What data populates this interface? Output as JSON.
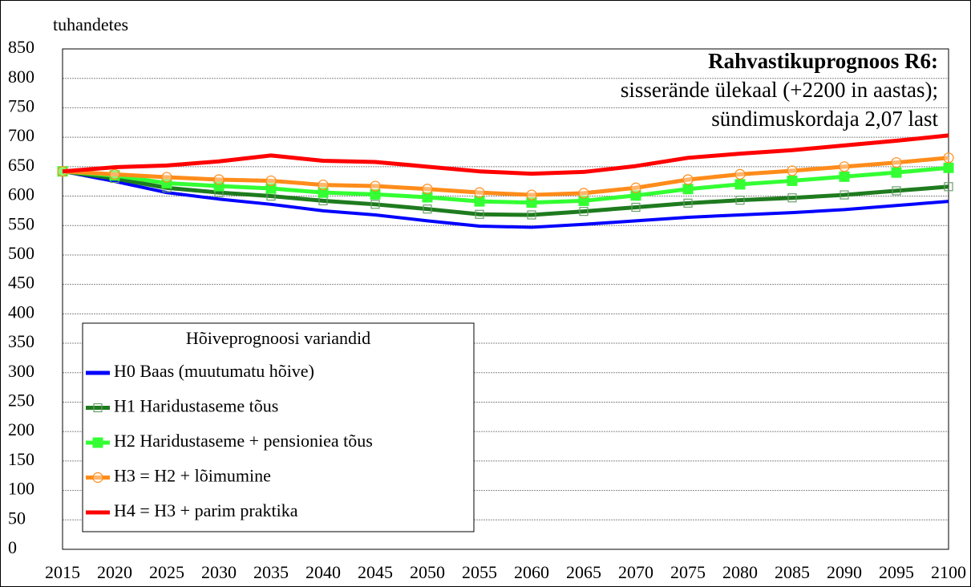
{
  "chart_data": {
    "type": "line",
    "ylabel": "tuhandetes",
    "annotations": [
      "Rahvastikuprognoos R6:",
      "sisserände ülekaal (+2200 in aastas);",
      "sündimuskordaja 2,07 last"
    ],
    "legend_title": "Hõiveprognoosi variandid",
    "legend_position": "lower left",
    "grid": true,
    "categories": [
      "2015",
      "2020",
      "2025",
      "2030",
      "2035",
      "2040",
      "2045",
      "2050",
      "2055",
      "2060",
      "2065",
      "2070",
      "2075",
      "2080",
      "2085",
      "2090",
      "2095",
      "2100"
    ],
    "ylim": [
      0,
      850
    ],
    "yticks": [
      0,
      50,
      100,
      150,
      200,
      250,
      300,
      350,
      400,
      450,
      500,
      550,
      600,
      650,
      700,
      750,
      800,
      850
    ],
    "series": [
      {
        "name": "H0 Baas (muutumatu hõive)",
        "color": "#0000ff",
        "marker": "none",
        "values": [
          642,
          625,
          606,
          595,
          586,
          575,
          568,
          558,
          549,
          547,
          552,
          558,
          564,
          568,
          572,
          577,
          584,
          591
        ]
      },
      {
        "name": "H1 Haridustaseme tõus",
        "color": "#1e7b1e",
        "marker": "square-open",
        "values": [
          642,
          630,
          614,
          606,
          600,
          592,
          586,
          578,
          569,
          568,
          574,
          581,
          588,
          593,
          597,
          602,
          609,
          616
        ]
      },
      {
        "name": "H2 Haridustaseme + pensioniea tõus",
        "color": "#33ff33",
        "marker": "square-filled",
        "values": [
          642,
          635,
          622,
          617,
          613,
          606,
          603,
          598,
          591,
          589,
          592,
          601,
          612,
          620,
          626,
          633,
          640,
          648
        ]
      },
      {
        "name": "H3 = H2 + lõimumine",
        "color": "#ff8c1a",
        "marker": "circle-open",
        "values": [
          642,
          637,
          632,
          628,
          626,
          619,
          617,
          612,
          606,
          602,
          605,
          614,
          628,
          637,
          643,
          650,
          657,
          665
        ]
      },
      {
        "name": "H4 = H3 + parim praktika",
        "color": "#ff0000",
        "marker": "none",
        "values": [
          642,
          649,
          652,
          659,
          669,
          660,
          658,
          650,
          642,
          638,
          641,
          651,
          665,
          672,
          678,
          686,
          694,
          703
        ]
      }
    ]
  }
}
